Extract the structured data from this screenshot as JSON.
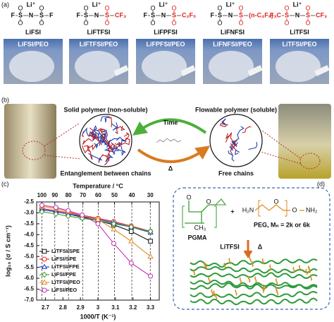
{
  "panel_a": {
    "label": "(a)",
    "atoms": {
      "cation": "Li⁺",
      "sulfur": "S",
      "nitrogen": "N",
      "oxygen": "O"
    },
    "salts": [
      {
        "name": "LiFSI",
        "left": "F",
        "right": "F",
        "photo_label": "LiFSI/PEO"
      },
      {
        "name": "LiFTFSI",
        "left": "F",
        "right": "CF₃",
        "photo_label": "LiFTFSI/PEO"
      },
      {
        "name": "LiFPFSI",
        "left": "F",
        "right": "C₂F₅",
        "photo_label": "LiFPFSI/PEO"
      },
      {
        "name": "LiFNFSI",
        "left": "F",
        "right": "(n-C₄F₉)",
        "photo_label": "LiFNFSI/PEO"
      },
      {
        "name": "LiTFSI",
        "left": "F₃C",
        "right": "CF₃",
        "photo_label": "LiTFSI/PEO"
      }
    ]
  },
  "panel_b": {
    "label": "(b)",
    "left_title": "Solid polymer (non-soluble)",
    "right_title": "Flowable polymer (soluble)",
    "forward": "Time",
    "reverse": "Δ",
    "left_caption": "Entanglement between chains",
    "right_caption": "Free chains"
  },
  "panel_c": {
    "label": "(c)"
  },
  "chart_data": {
    "type": "line",
    "xlabel": "1000/T (K⁻¹)",
    "ylabel": "log₁₀ (σ / S cm⁻¹)",
    "x2label": "Temperature / °C",
    "x": [
      2.68,
      2.76,
      2.83,
      2.91,
      3.0,
      3.09,
      3.19,
      3.3
    ],
    "xlim": [
      2.65,
      3.35
    ],
    "xticks": [
      2.7,
      2.8,
      2.9,
      3.0,
      3.1,
      3.2,
      3.3
    ],
    "x2ticks": [
      100,
      90,
      80,
      70,
      60,
      50,
      40,
      30
    ],
    "ylim": [
      -7.0,
      -2.5
    ],
    "yticks": [
      {
        "value": -7.0,
        "label": "-7.0"
      },
      -6.5,
      {
        "value": -6.0,
        "label": "-6.0"
      },
      -5.5,
      {
        "value": -5.0,
        "label": "-5.0"
      },
      -4.5,
      {
        "value": -4.0,
        "label": "-4.0"
      },
      -3.5,
      {
        "value": -3.0,
        "label": "-3.0"
      },
      -2.5
    ],
    "grid": true,
    "legend": "lower-left",
    "series": [
      {
        "name": "LiTFSI/SPE",
        "color": "#111111",
        "marker": "square",
        "values": [
          -2.85,
          -2.95,
          -3.05,
          -3.2,
          -3.35,
          -3.55,
          -3.85,
          -4.3
        ]
      },
      {
        "name": "LiFSI/SPE",
        "color": "#e02020",
        "marker": "circle",
        "values": [
          -2.8,
          -2.9,
          -3.0,
          -3.1,
          -3.25,
          -3.4,
          -3.6,
          -3.85
        ]
      },
      {
        "name": "LiTFSI/FPE",
        "color": "#2030d0",
        "marker": "triangle",
        "values": [
          -2.85,
          -2.95,
          -3.05,
          -3.15,
          -3.3,
          -3.45,
          -3.65,
          -3.9
        ]
      },
      {
        "name": "LiFSI/FPE",
        "color": "#3a9a30",
        "marker": "diamond",
        "values": [
          -2.95,
          -3.05,
          -3.15,
          -3.25,
          -3.35,
          -3.5,
          -3.65,
          -3.85
        ]
      },
      {
        "name": "LiTFSI/PEO",
        "color": "#e08a20",
        "marker": "triangle",
        "values": [
          -2.7,
          -2.8,
          -2.95,
          -3.1,
          -3.3,
          -3.75,
          -4.3,
          -5.0
        ]
      },
      {
        "name": "LiFSI/PEO",
        "color": "#c030b0",
        "marker": "circle",
        "values": [
          -2.65,
          -2.75,
          -2.9,
          -3.1,
          -3.5,
          -4.4,
          -5.3,
          -5.9
        ]
      }
    ]
  },
  "panel_d": {
    "label": "(d)",
    "monomer": "PGMA",
    "polymer": "PEG, Mₙ = 2k or 6k",
    "salt": "LiTFSI",
    "heat": "Δ",
    "plus": "+",
    "amine_left": "H₂N",
    "amine_right": "NH₂",
    "methyl": "CH₃",
    "oxygen": "O"
  }
}
